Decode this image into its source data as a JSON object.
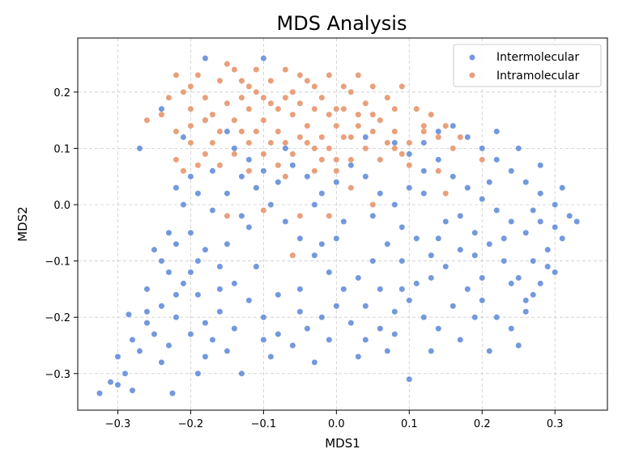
{
  "chart_data": {
    "type": "scatter",
    "title": "MDS Analysis",
    "xlabel": "MDS1",
    "ylabel": "MDS2",
    "xlim": [
      -0.355,
      0.372
    ],
    "ylim": [
      -0.365,
      0.296
    ],
    "xticks": [
      -0.3,
      -0.2,
      -0.1,
      0.0,
      0.1,
      0.2,
      0.3
    ],
    "yticks": [
      -0.3,
      -0.2,
      -0.1,
      0.0,
      0.1,
      0.2
    ],
    "xtick_labels": [
      "−0.3",
      "−0.2",
      "−0.1",
      "0.0",
      "0.1",
      "0.2",
      "0.3"
    ],
    "ytick_labels": [
      "−0.3",
      "−0.2",
      "−0.1",
      "0.0",
      "0.1",
      "0.2"
    ],
    "grid": true,
    "legend_position": "top-right",
    "series": [
      {
        "name": "Intermolecular",
        "color": "#7399dd",
        "points": [
          [
            -0.325,
            -0.335
          ],
          [
            -0.31,
            -0.315
          ],
          [
            -0.3,
            -0.32
          ],
          [
            -0.29,
            -0.3
          ],
          [
            -0.28,
            -0.33
          ],
          [
            -0.3,
            -0.27
          ],
          [
            -0.27,
            -0.26
          ],
          [
            -0.28,
            -0.24
          ],
          [
            -0.285,
            -0.195
          ],
          [
            -0.26,
            -0.21
          ],
          [
            -0.25,
            -0.23
          ],
          [
            -0.24,
            -0.28
          ],
          [
            -0.225,
            -0.335
          ],
          [
            -0.23,
            -0.25
          ],
          [
            -0.22,
            -0.2
          ],
          [
            -0.2,
            -0.23
          ],
          [
            -0.18,
            -0.27
          ],
          [
            -0.17,
            -0.24
          ],
          [
            -0.15,
            -0.26
          ],
          [
            -0.14,
            -0.22
          ],
          [
            -0.16,
            -0.19
          ],
          [
            -0.19,
            -0.16
          ],
          [
            -0.21,
            -0.14
          ],
          [
            -0.23,
            -0.12
          ],
          [
            -0.24,
            -0.1
          ],
          [
            -0.25,
            -0.08
          ],
          [
            -0.22,
            -0.07
          ],
          [
            -0.2,
            -0.05
          ],
          [
            -0.18,
            -0.08
          ],
          [
            -0.16,
            -0.11
          ],
          [
            -0.14,
            -0.14
          ],
          [
            -0.12,
            -0.17
          ],
          [
            -0.1,
            -0.2
          ],
          [
            -0.08,
            -0.23
          ],
          [
            -0.06,
            -0.25
          ],
          [
            -0.04,
            -0.22
          ],
          [
            -0.02,
            -0.2
          ],
          [
            0.0,
            -0.18
          ],
          [
            0.02,
            -0.21
          ],
          [
            0.04,
            -0.24
          ],
          [
            0.06,
            -0.22
          ],
          [
            0.08,
            -0.19
          ],
          [
            0.1,
            -0.17
          ],
          [
            0.12,
            -0.2
          ],
          [
            0.14,
            -0.22
          ],
          [
            0.1,
            -0.31
          ],
          [
            0.16,
            -0.18
          ],
          [
            0.18,
            -0.15
          ],
          [
            0.2,
            -0.17
          ],
          [
            0.22,
            -0.2
          ],
          [
            0.24,
            -0.22
          ],
          [
            0.26,
            -0.19
          ],
          [
            0.27,
            -0.16
          ],
          [
            0.25,
            -0.13
          ],
          [
            0.23,
            -0.1
          ],
          [
            0.21,
            -0.07
          ],
          [
            0.19,
            -0.05
          ],
          [
            0.17,
            -0.08
          ],
          [
            0.15,
            -0.11
          ],
          [
            0.13,
            -0.09
          ],
          [
            0.11,
            -0.06
          ],
          [
            0.09,
            -0.04
          ],
          [
            0.07,
            -0.07
          ],
          [
            0.05,
            -0.1
          ],
          [
            0.03,
            -0.13
          ],
          [
            0.01,
            -0.15
          ],
          [
            -0.01,
            -0.12
          ],
          [
            -0.03,
            -0.09
          ],
          [
            -0.05,
            -0.06
          ],
          [
            -0.07,
            -0.03
          ],
          [
            -0.09,
            0.0
          ],
          [
            -0.11,
            0.03
          ],
          [
            -0.13,
            0.05
          ],
          [
            -0.15,
            0.02
          ],
          [
            -0.17,
            -0.01
          ],
          [
            -0.19,
            0.02
          ],
          [
            -0.2,
            0.05
          ],
          [
            -0.22,
            0.03
          ],
          [
            -0.21,
            0.0
          ],
          [
            -0.12,
            0.08
          ],
          [
            -0.1,
            0.06
          ],
          [
            -0.08,
            0.04
          ],
          [
            -0.06,
            0.07
          ],
          [
            -0.04,
            0.05
          ],
          [
            -0.02,
            0.02
          ],
          [
            0.0,
            0.04
          ],
          [
            0.02,
            0.07
          ],
          [
            0.04,
            0.05
          ],
          [
            0.06,
            0.02
          ],
          [
            0.08,
            0.0
          ],
          [
            0.1,
            0.03
          ],
          [
            0.12,
            0.06
          ],
          [
            0.14,
            0.08
          ],
          [
            0.16,
            0.05
          ],
          [
            0.18,
            0.03
          ],
          [
            0.2,
            0.01
          ],
          [
            0.22,
            -0.01
          ],
          [
            0.24,
            -0.03
          ],
          [
            0.26,
            -0.05
          ],
          [
            0.28,
            -0.03
          ],
          [
            0.3,
            -0.04
          ],
          [
            0.32,
            -0.02
          ],
          [
            0.33,
            -0.03
          ],
          [
            0.31,
            -0.06
          ],
          [
            0.29,
            -0.08
          ],
          [
            0.27,
            -0.1
          ],
          [
            0.3,
            -0.12
          ],
          [
            0.28,
            -0.14
          ],
          [
            0.26,
            -0.17
          ],
          [
            0.3,
            0.0
          ],
          [
            0.28,
            0.02
          ],
          [
            0.26,
            0.04
          ],
          [
            0.24,
            0.06
          ],
          [
            0.22,
            0.08
          ],
          [
            0.2,
            0.1
          ],
          [
            0.18,
            0.12
          ],
          [
            0.16,
            0.14
          ],
          [
            0.14,
            0.13
          ],
          [
            0.12,
            0.11
          ],
          [
            0.1,
            0.09
          ],
          [
            0.08,
            0.11
          ],
          [
            0.22,
            0.13
          ],
          [
            0.25,
            0.1
          ],
          [
            0.28,
            0.07
          ],
          [
            0.31,
            0.03
          ],
          [
            0.25,
            -0.25
          ],
          [
            0.21,
            -0.26
          ],
          [
            0.17,
            -0.24
          ],
          [
            0.13,
            -0.26
          ],
          [
            0.07,
            -0.26
          ],
          [
            0.03,
            -0.27
          ],
          [
            -0.03,
            -0.28
          ],
          [
            -0.09,
            -0.27
          ],
          [
            -0.13,
            -0.3
          ],
          [
            -0.19,
            -0.3
          ],
          [
            -0.26,
            -0.15
          ],
          [
            -0.2,
            -0.12
          ],
          [
            -0.15,
            -0.07
          ],
          [
            -0.12,
            -0.04
          ],
          [
            -0.17,
            0.06
          ],
          [
            -0.14,
            0.1
          ],
          [
            -0.07,
            0.1
          ],
          [
            -0.03,
            0.0
          ],
          [
            0.01,
            -0.03
          ],
          [
            0.05,
            -0.02
          ],
          [
            0.09,
            -0.1
          ],
          [
            0.13,
            -0.13
          ],
          [
            0.0,
            -0.06
          ],
          [
            -0.05,
            -0.15
          ],
          [
            -0.11,
            -0.11
          ],
          [
            -0.08,
            -0.16
          ],
          [
            0.06,
            -0.15
          ],
          [
            0.11,
            -0.14
          ],
          [
            0.15,
            -0.03
          ],
          [
            0.19,
            -0.09
          ],
          [
            0.23,
            -0.06
          ],
          [
            0.24,
            -0.14
          ],
          [
            0.19,
            -0.2
          ],
          [
            0.08,
            -0.23
          ],
          [
            -0.01,
            -0.24
          ],
          [
            -0.1,
            -0.24
          ],
          [
            -0.18,
            -0.21
          ],
          [
            -0.24,
            -0.18
          ],
          [
            -0.26,
            -0.19
          ],
          [
            -0.22,
            -0.16
          ],
          [
            -0.18,
            0.15
          ],
          [
            -0.15,
            0.13
          ],
          [
            -0.21,
            0.12
          ],
          [
            -0.24,
            0.17
          ],
          [
            -0.27,
            0.1
          ],
          [
            -0.1,
            0.26
          ],
          [
            -0.18,
            0.26
          ],
          [
            0.04,
            0.12
          ],
          [
            0.12,
            0.02
          ],
          [
            0.17,
            -0.02
          ],
          [
            0.21,
            0.04
          ],
          [
            0.27,
            -0.01
          ],
          [
            0.29,
            -0.11
          ],
          [
            0.2,
            -0.13
          ],
          [
            0.09,
            -0.15
          ],
          [
            -0.02,
            -0.07
          ],
          [
            -0.13,
            -0.02
          ],
          [
            -0.19,
            -0.1
          ],
          [
            -0.23,
            -0.05
          ],
          [
            -0.16,
            -0.15
          ],
          [
            -0.05,
            -0.19
          ],
          [
            0.04,
            -0.18
          ],
          [
            0.14,
            -0.06
          ]
        ]
      },
      {
        "name": "Intramolecular",
        "color": "#e9a07a",
        "points": [
          [
            -0.22,
            0.23
          ],
          [
            -0.2,
            0.21
          ],
          [
            -0.18,
            0.19
          ],
          [
            -0.16,
            0.22
          ],
          [
            -0.14,
            0.24
          ],
          [
            -0.12,
            0.21
          ],
          [
            -0.1,
            0.19
          ],
          [
            -0.08,
            0.17
          ],
          [
            -0.06,
            0.2
          ],
          [
            -0.04,
            0.22
          ],
          [
            -0.02,
            0.19
          ],
          [
            0.0,
            0.17
          ],
          [
            0.02,
            0.2
          ],
          [
            0.04,
            0.18
          ],
          [
            0.06,
            0.15
          ],
          [
            0.08,
            0.13
          ],
          [
            0.1,
            0.11
          ],
          [
            0.12,
            0.14
          ],
          [
            0.14,
            0.12
          ],
          [
            0.16,
            0.1
          ],
          [
            -0.2,
            0.17
          ],
          [
            -0.18,
            0.15
          ],
          [
            -0.16,
            0.13
          ],
          [
            -0.14,
            0.15
          ],
          [
            -0.12,
            0.17
          ],
          [
            -0.1,
            0.15
          ],
          [
            -0.08,
            0.13
          ],
          [
            -0.06,
            0.16
          ],
          [
            -0.04,
            0.14
          ],
          [
            -0.02,
            0.12
          ],
          [
            0.0,
            0.14
          ],
          [
            0.02,
            0.12
          ],
          [
            0.04,
            0.1
          ],
          [
            0.06,
            0.08
          ],
          [
            0.08,
            0.1
          ],
          [
            -0.22,
            0.13
          ],
          [
            -0.2,
            0.11
          ],
          [
            -0.18,
            0.09
          ],
          [
            -0.16,
            0.07
          ],
          [
            -0.14,
            0.09
          ],
          [
            -0.12,
            0.11
          ],
          [
            -0.1,
            0.09
          ],
          [
            -0.08,
            0.07
          ],
          [
            -0.06,
            0.09
          ],
          [
            -0.04,
            0.11
          ],
          [
            -0.02,
            0.08
          ],
          [
            0.0,
            0.06
          ],
          [
            0.02,
            0.08
          ],
          [
            -0.24,
            0.16
          ],
          [
            -0.26,
            0.15
          ],
          [
            -0.22,
            0.08
          ],
          [
            -0.19,
            0.07
          ],
          [
            -0.15,
            0.25
          ],
          [
            -0.13,
            0.22
          ],
          [
            -0.11,
            0.24
          ],
          [
            -0.09,
            0.22
          ],
          [
            -0.07,
            0.24
          ],
          [
            -0.05,
            0.23
          ],
          [
            -0.03,
            0.21
          ],
          [
            -0.01,
            0.23
          ],
          [
            0.01,
            0.21
          ],
          [
            0.03,
            0.23
          ],
          [
            0.05,
            0.21
          ],
          [
            0.07,
            0.19
          ],
          [
            0.09,
            0.21
          ],
          [
            0.11,
            0.17
          ],
          [
            0.13,
            0.16
          ],
          [
            0.15,
            0.14
          ],
          [
            0.17,
            0.12
          ],
          [
            -0.17,
            0.11
          ],
          [
            -0.13,
            0.13
          ],
          [
            -0.11,
            0.13
          ],
          [
            -0.09,
            0.11
          ],
          [
            -0.07,
            0.11
          ],
          [
            -0.05,
            0.12
          ],
          [
            -0.03,
            0.1
          ],
          [
            -0.01,
            0.1
          ],
          [
            0.01,
            0.12
          ],
          [
            0.03,
            0.14
          ],
          [
            0.05,
            0.13
          ],
          [
            0.07,
            0.11
          ],
          [
            0.09,
            0.09
          ],
          [
            0.0,
            0.08
          ],
          [
            -0.03,
            0.06
          ],
          [
            -0.07,
            0.05
          ],
          [
            0.15,
            0.02
          ],
          [
            0.14,
            0.06
          ],
          [
            0.2,
            0.08
          ],
          [
            -0.05,
            -0.02
          ],
          [
            -0.1,
            -0.01
          ],
          [
            -0.15,
            -0.02
          ],
          [
            -0.06,
            -0.09
          ],
          [
            -0.01,
            -0.02
          ],
          [
            0.05,
            0.0
          ],
          [
            0.12,
            0.13
          ],
          [
            -0.21,
            0.2
          ],
          [
            -0.19,
            0.23
          ],
          [
            -0.23,
            0.19
          ],
          [
            -0.2,
            0.14
          ],
          [
            -0.17,
            0.16
          ],
          [
            -0.15,
            0.18
          ],
          [
            -0.13,
            0.19
          ],
          [
            -0.11,
            0.2
          ],
          [
            -0.09,
            0.18
          ],
          [
            -0.07,
            0.19
          ],
          [
            -0.05,
            0.18
          ],
          [
            -0.03,
            0.17
          ],
          [
            -0.01,
            0.16
          ],
          [
            0.01,
            0.17
          ],
          [
            0.03,
            0.16
          ],
          [
            0.05,
            0.16
          ],
          [
            0.08,
            0.17
          ],
          [
            -0.21,
            0.06
          ],
          [
            -0.12,
            0.06
          ],
          [
            0.1,
            0.07
          ],
          [
            0.02,
            0.03
          ]
        ]
      }
    ]
  }
}
